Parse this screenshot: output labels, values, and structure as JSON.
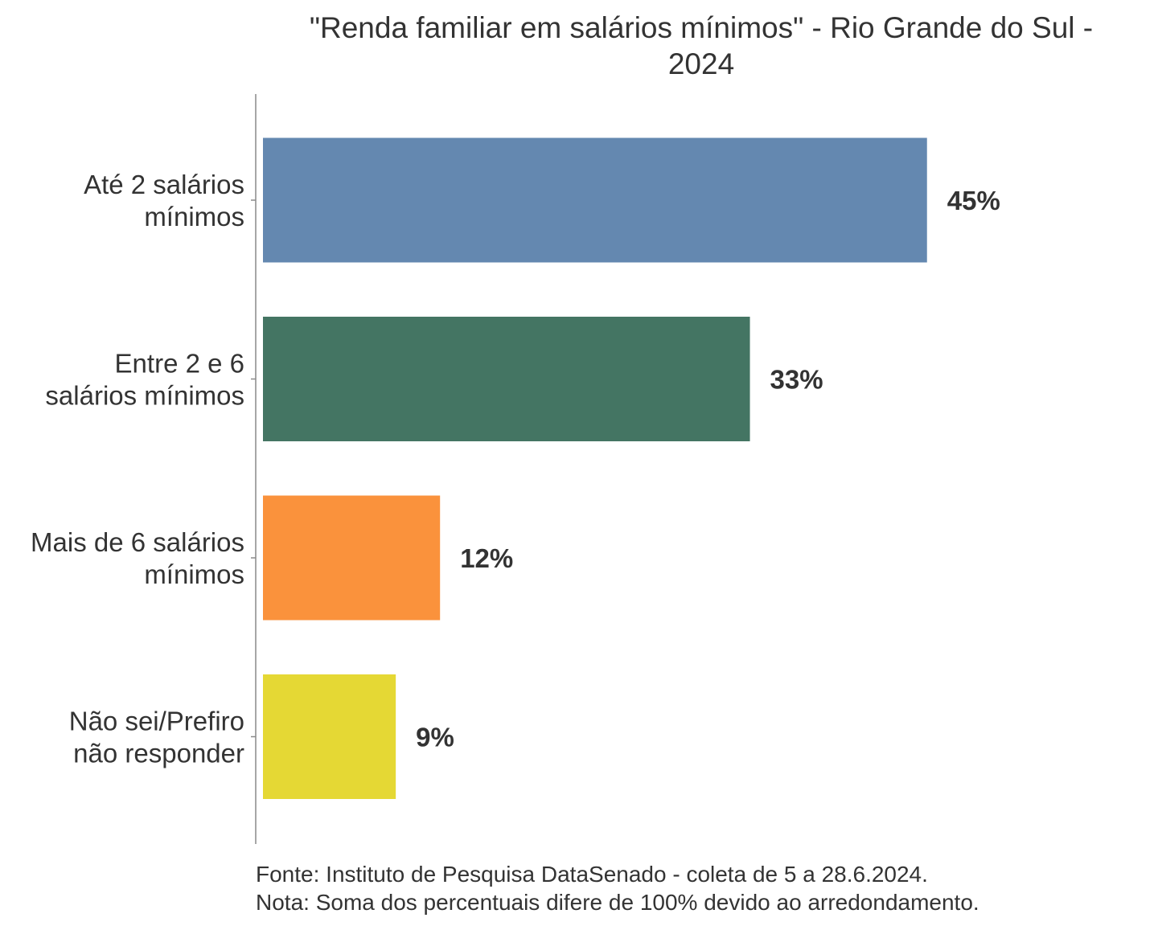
{
  "chart_data": {
    "type": "bar",
    "orientation": "horizontal",
    "title": [
      "\"Renda familiar em salários mínimos\" - Rio Grande do Sul -",
      "2024"
    ],
    "categories": [
      [
        "Até 2 salários",
        "mínimos"
      ],
      [
        "Entre 2 e 6",
        "salários mínimos"
      ],
      [
        "Mais de 6 salários",
        "mínimos"
      ],
      [
        "Não sei/Prefiro",
        "não responder"
      ]
    ],
    "values": [
      45,
      33,
      12,
      9
    ],
    "value_labels": [
      "45%",
      "33%",
      "12%",
      "9%"
    ],
    "colors": [
      "#6488b0",
      "#447563",
      "#fa923c",
      "#e5d834"
    ],
    "xlim": [
      0,
      50
    ],
    "grid": false,
    "legend": "none",
    "notes": [
      "Fonte: Instituto de Pesquisa DataSenado - coleta de 5 a 28.6.2024.",
      "Nota: Soma dos percentuais difere de 100% devido ao arredondamento."
    ]
  }
}
